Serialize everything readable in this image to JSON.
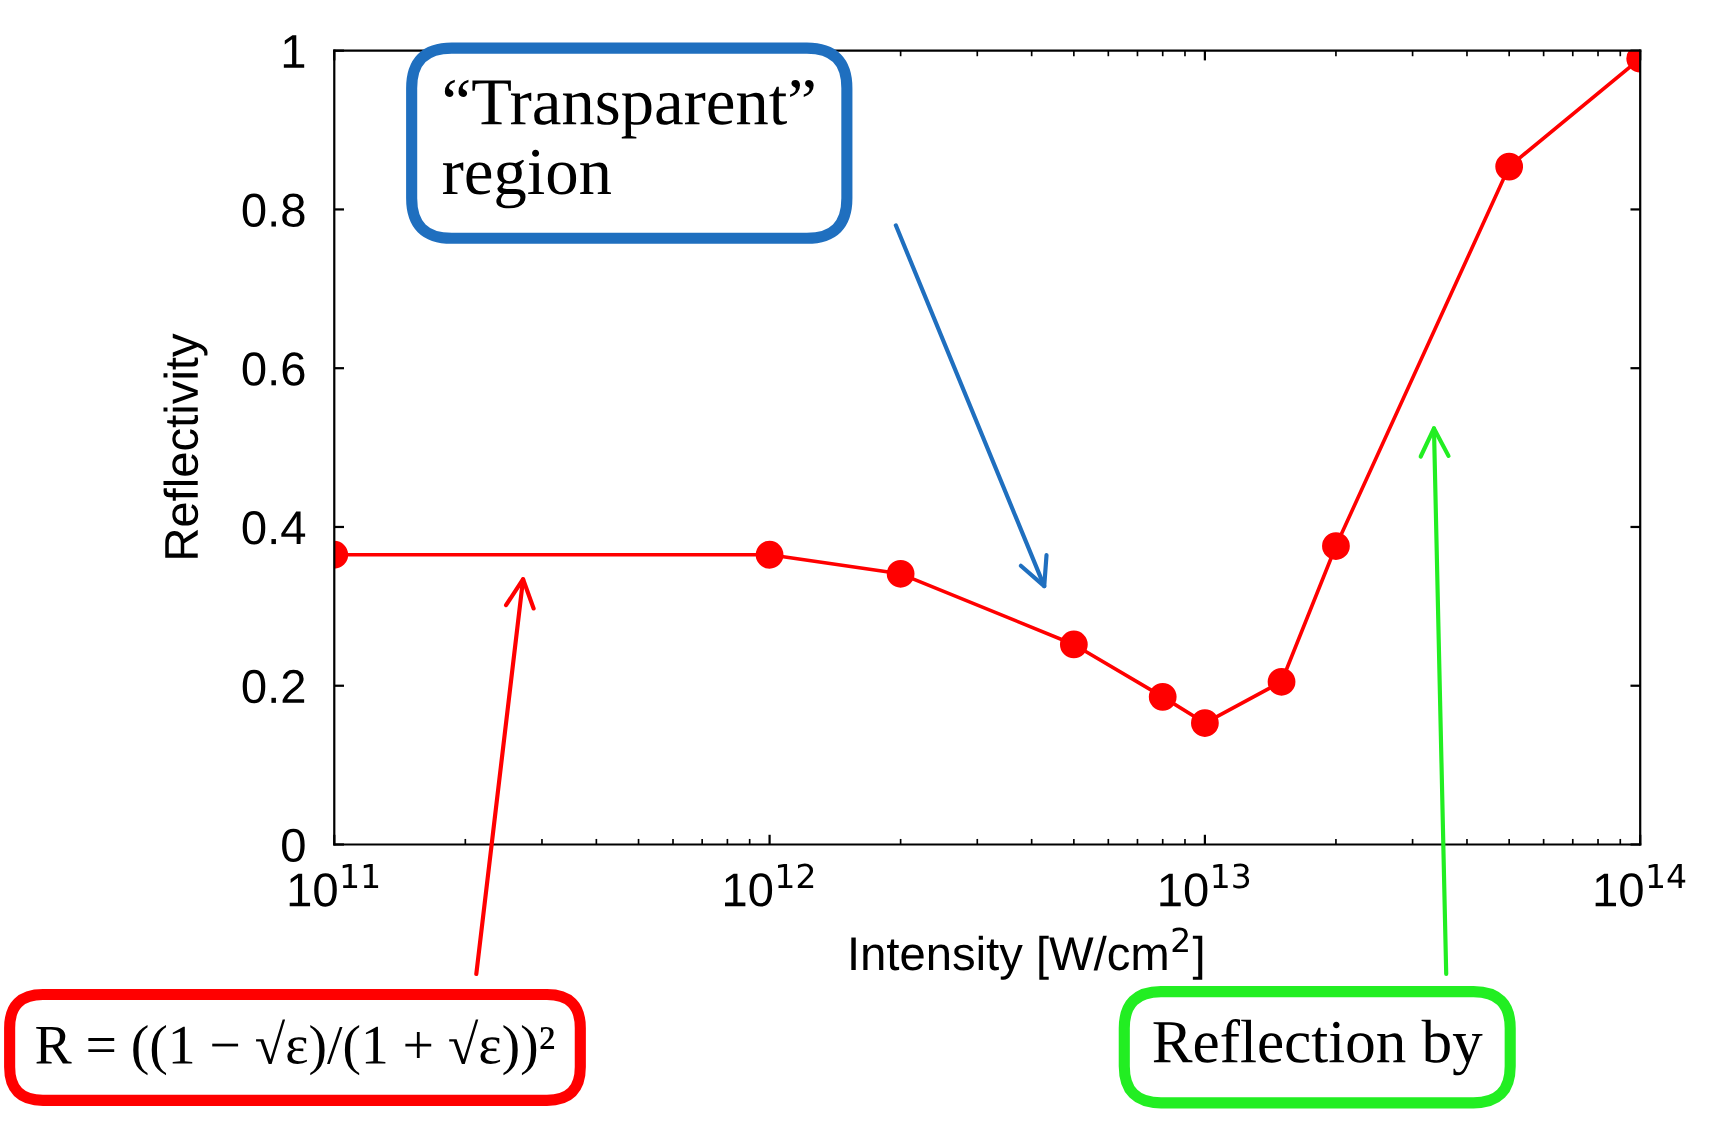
{
  "chart_data": {
    "type": "line",
    "xlabel": "Intensity [W/cm$^{2}$]",
    "ylabel": "Reflectivity",
    "x": [
      100000000000.0,
      1000000000000.0,
      2000000000000.0,
      5000000000000.0,
      8000000000000.0,
      10000000000000.0,
      15000000000000.0,
      20000000000000.0,
      50000000000000.0,
      100000000000000.0
    ],
    "series": [
      {
        "color": "#ff0000",
        "values": [
          0.365,
          0.365,
          0.341,
          0.252,
          0.186,
          0.153,
          0.205,
          0.376,
          0.854,
          0.99
        ]
      }
    ],
    "log": "x",
    "xlim": [
      100000000000.0,
      100000000000000.0
    ],
    "xticks": [
      {
        "value": 100000000000.0,
        "label": "10$^{11}$"
      },
      {
        "value": 1000000000000.0,
        "label": "10$^{12}$"
      },
      {
        "value": 10000000000000.0,
        "label": "10$^{13}$"
      },
      {
        "value": 100000000000000.0,
        "label": "10$^{14}$"
      }
    ],
    "ylim": [
      0,
      1
    ],
    "yticks": [
      0,
      0.2,
      0.4,
      0.6,
      0.8,
      1
    ],
    "grid": false,
    "legend": false,
    "marker": "circle",
    "line_style": "solid",
    "annotations": [
      "“Transparent”\nregion",
      "R = ((1 − √ε)/(1 + √ε))²",
      "Reflection by"
    ]
  }
}
